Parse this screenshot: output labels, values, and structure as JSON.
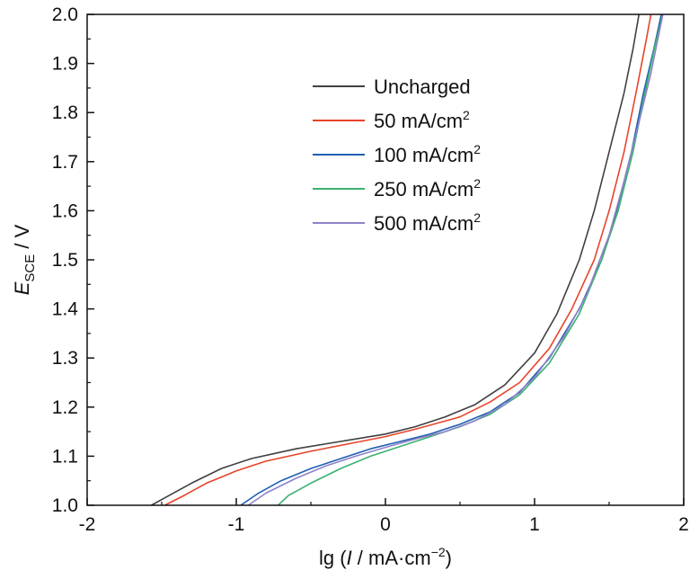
{
  "chart_data": {
    "type": "line",
    "xlabel": {
      "prefix": "lg (",
      "italic": "I",
      "suffix": " / mA·cm",
      "sup": "−2",
      "close": ")"
    },
    "ylabel": {
      "italic": "E",
      "sub": "SCE",
      "suffix": " / V"
    },
    "xlim": [
      -2,
      2
    ],
    "ylim": [
      1.0,
      2.0
    ],
    "x_ticks": [
      -2,
      -1,
      0,
      1,
      2
    ],
    "x_tick_labels": [
      "-2",
      "-1",
      "0",
      "1",
      "2"
    ],
    "y_ticks": [
      1.0,
      1.1,
      1.2,
      1.3,
      1.4,
      1.5,
      1.6,
      1.7,
      1.8,
      1.9,
      2.0
    ],
    "y_tick_labels": [
      "1.0",
      "1.1",
      "1.2",
      "1.3",
      "1.4",
      "1.5",
      "1.6",
      "1.7",
      "1.8",
      "1.9",
      "2.0"
    ],
    "grid": false,
    "legend_position": "upper-center",
    "series": [
      {
        "name": "Uncharged",
        "name_sup": "",
        "color": "#404040",
        "points": [
          [
            -1.57,
            1.0
          ],
          [
            -1.45,
            1.02
          ],
          [
            -1.3,
            1.045
          ],
          [
            -1.1,
            1.075
          ],
          [
            -0.9,
            1.095
          ],
          [
            -0.6,
            1.115
          ],
          [
            -0.3,
            1.13
          ],
          [
            0.0,
            1.145
          ],
          [
            0.2,
            1.16
          ],
          [
            0.4,
            1.18
          ],
          [
            0.6,
            1.205
          ],
          [
            0.8,
            1.245
          ],
          [
            1.0,
            1.31
          ],
          [
            1.15,
            1.39
          ],
          [
            1.3,
            1.5
          ],
          [
            1.4,
            1.6
          ],
          [
            1.5,
            1.72
          ],
          [
            1.6,
            1.84
          ],
          [
            1.66,
            1.93
          ],
          [
            1.7,
            2.0
          ]
        ]
      },
      {
        "name": "50 mA/cm",
        "name_sup": "2",
        "color": "#e8442a",
        "points": [
          [
            -1.48,
            1.0
          ],
          [
            -1.35,
            1.02
          ],
          [
            -1.2,
            1.045
          ],
          [
            -1.0,
            1.07
          ],
          [
            -0.8,
            1.09
          ],
          [
            -0.5,
            1.11
          ],
          [
            -0.2,
            1.128
          ],
          [
            0.0,
            1.14
          ],
          [
            0.2,
            1.155
          ],
          [
            0.5,
            1.18
          ],
          [
            0.7,
            1.21
          ],
          [
            0.9,
            1.25
          ],
          [
            1.1,
            1.32
          ],
          [
            1.25,
            1.4
          ],
          [
            1.4,
            1.5
          ],
          [
            1.5,
            1.6
          ],
          [
            1.6,
            1.72
          ],
          [
            1.68,
            1.84
          ],
          [
            1.75,
            1.95
          ],
          [
            1.78,
            2.0
          ]
        ]
      },
      {
        "name": "100 mA/cm",
        "name_sup": "2",
        "color": "#1f5fb0",
        "points": [
          [
            -0.97,
            1.0
          ],
          [
            -0.85,
            1.025
          ],
          [
            -0.7,
            1.05
          ],
          [
            -0.5,
            1.075
          ],
          [
            -0.3,
            1.095
          ],
          [
            -0.1,
            1.115
          ],
          [
            0.1,
            1.13
          ],
          [
            0.3,
            1.145
          ],
          [
            0.5,
            1.165
          ],
          [
            0.7,
            1.19
          ],
          [
            0.9,
            1.23
          ],
          [
            1.1,
            1.3
          ],
          [
            1.3,
            1.4
          ],
          [
            1.45,
            1.5
          ],
          [
            1.55,
            1.6
          ],
          [
            1.65,
            1.72
          ],
          [
            1.73,
            1.84
          ],
          [
            1.8,
            1.93
          ],
          [
            1.85,
            2.0
          ]
        ]
      },
      {
        "name": "250 mA/cm",
        "name_sup": "2",
        "color": "#3bb071",
        "points": [
          [
            -0.72,
            1.0
          ],
          [
            -0.65,
            1.02
          ],
          [
            -0.5,
            1.045
          ],
          [
            -0.3,
            1.075
          ],
          [
            -0.1,
            1.1
          ],
          [
            0.1,
            1.12
          ],
          [
            0.3,
            1.14
          ],
          [
            0.5,
            1.16
          ],
          [
            0.7,
            1.185
          ],
          [
            0.9,
            1.225
          ],
          [
            1.1,
            1.29
          ],
          [
            1.3,
            1.39
          ],
          [
            1.45,
            1.5
          ],
          [
            1.56,
            1.6
          ],
          [
            1.66,
            1.72
          ],
          [
            1.74,
            1.84
          ],
          [
            1.81,
            1.94
          ],
          [
            1.86,
            2.0
          ]
        ]
      },
      {
        "name": "500 mA/cm",
        "name_sup": "2",
        "color": "#8e82c8",
        "points": [
          [
            -0.92,
            1.0
          ],
          [
            -0.8,
            1.025
          ],
          [
            -0.6,
            1.055
          ],
          [
            -0.4,
            1.08
          ],
          [
            -0.2,
            1.1
          ],
          [
            0.0,
            1.118
          ],
          [
            0.2,
            1.135
          ],
          [
            0.4,
            1.15
          ],
          [
            0.6,
            1.172
          ],
          [
            0.8,
            1.205
          ],
          [
            1.0,
            1.26
          ],
          [
            1.2,
            1.345
          ],
          [
            1.35,
            1.43
          ],
          [
            1.5,
            1.55
          ],
          [
            1.6,
            1.66
          ],
          [
            1.7,
            1.78
          ],
          [
            1.78,
            1.88
          ],
          [
            1.86,
            2.0
          ]
        ]
      }
    ]
  }
}
